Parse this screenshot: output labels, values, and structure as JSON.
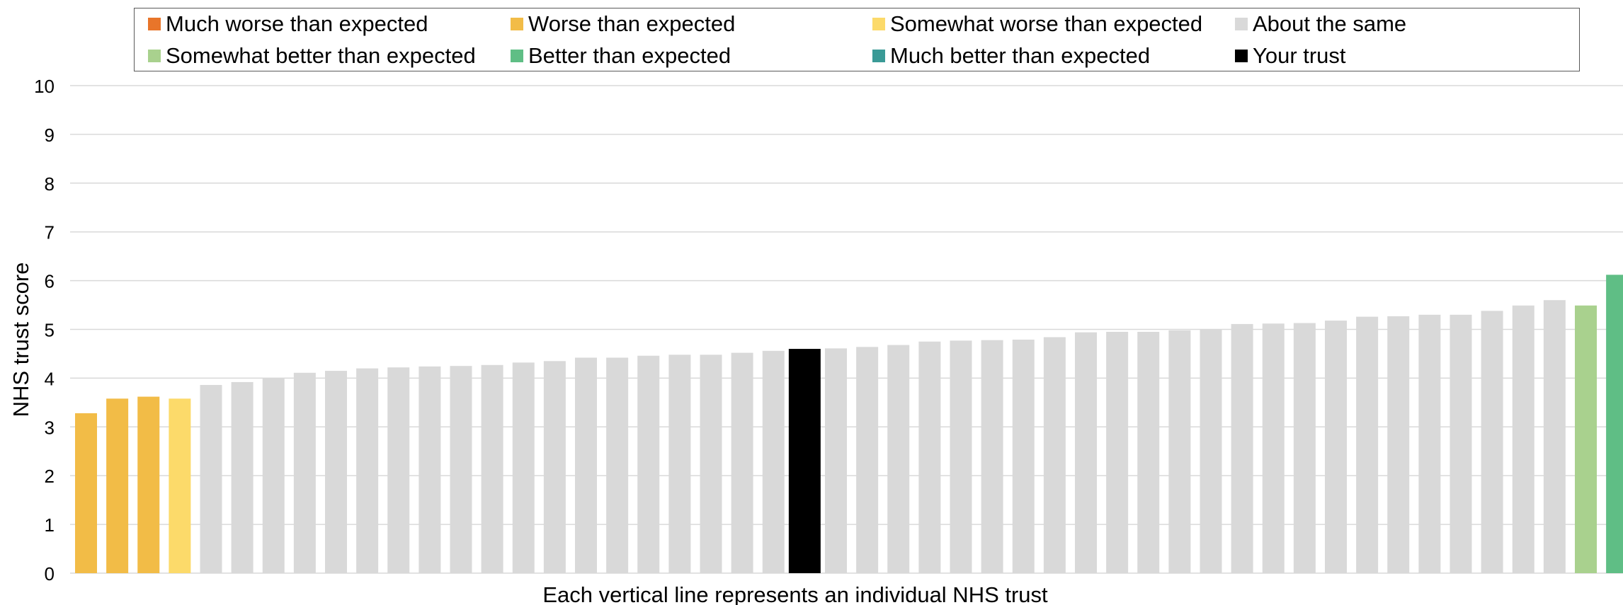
{
  "legend": {
    "items": [
      {
        "label": "Much worse than expected",
        "color": "#E8752A"
      },
      {
        "label": "Worse than expected",
        "color": "#F2BC47"
      },
      {
        "label": "Somewhat worse than expected",
        "color": "#FCDA6A"
      },
      {
        "label": "About the same",
        "color": "#D9D9D9"
      },
      {
        "label": "Somewhat better than expected",
        "color": "#A9D18E"
      },
      {
        "label": "Better than expected",
        "color": "#5FBE85"
      },
      {
        "label": "Much better than expected",
        "color": "#3A9A96"
      },
      {
        "label": "Your trust",
        "color": "#000000"
      }
    ]
  },
  "chart_data": {
    "type": "bar",
    "title": "",
    "xlabel": "Each vertical line represents an individual NHS trust",
    "ylabel": "NHS trust score",
    "ylim": [
      0,
      10
    ],
    "yticks": [
      "0",
      "1",
      "2",
      "3",
      "4",
      "5",
      "6",
      "7",
      "8",
      "9",
      "10"
    ],
    "grid": true,
    "legend_position": "top",
    "values": [
      3.28,
      3.58,
      3.62,
      3.58,
      3.86,
      3.92,
      4.0,
      4.11,
      4.15,
      4.2,
      4.22,
      4.24,
      4.25,
      4.27,
      4.32,
      4.35,
      4.42,
      4.42,
      4.46,
      4.48,
      4.48,
      4.52,
      4.56,
      4.6,
      4.61,
      4.64,
      4.68,
      4.75,
      4.77,
      4.78,
      4.79,
      4.84,
      4.94,
      4.95,
      4.95,
      4.98,
      5.0,
      5.11,
      5.12,
      5.13,
      5.18,
      5.26,
      5.27,
      5.3,
      5.3,
      5.38,
      5.49,
      5.6,
      5.49,
      6.12
    ],
    "categories_of_bars": [
      "worse",
      "worse",
      "worse",
      "somewhat-worse",
      "same",
      "same",
      "same",
      "same",
      "same",
      "same",
      "same",
      "same",
      "same",
      "same",
      "same",
      "same",
      "same",
      "same",
      "same",
      "same",
      "same",
      "same",
      "same",
      "your-trust",
      "same",
      "same",
      "same",
      "same",
      "same",
      "same",
      "same",
      "same",
      "same",
      "same",
      "same",
      "same",
      "same",
      "same",
      "same",
      "same",
      "same",
      "same",
      "same",
      "same",
      "same",
      "same",
      "same",
      "same",
      "somewhat-better",
      "better"
    ],
    "category_colors": {
      "worse": "#F2BC47",
      "somewhat-worse": "#FCDA6A",
      "same": "#D9D9D9",
      "your-trust": "#000000",
      "somewhat-better": "#A9D18E",
      "better": "#5FBE85"
    }
  }
}
